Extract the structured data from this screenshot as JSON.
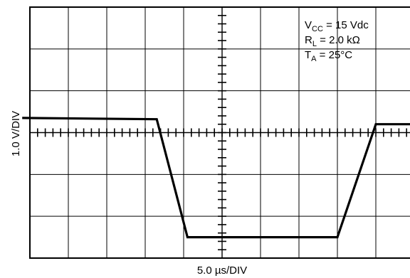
{
  "chart_data": {
    "type": "line",
    "title": "",
    "xlabel": "5.0 µs/DIV",
    "ylabel": "1.0 V/DIV",
    "grid": true,
    "divisions": {
      "x": 10,
      "y": 6
    },
    "x_unit_per_div": "5.0 µs",
    "y_unit_per_div": "1.0 V",
    "conditions": [
      {
        "main": "V",
        "sub": "CC",
        "rest": " = 15 Vdc"
      },
      {
        "main": "R",
        "sub": "L",
        "rest": " = 2.0 kΩ"
      },
      {
        "main": "T",
        "sub": "A",
        "rest": " = 25°C"
      }
    ],
    "series": [
      {
        "x": [
          -5.2,
          -1.7,
          -0.9,
          3.0,
          4.0,
          5.2
        ],
        "y": [
          0.35,
          0.32,
          -2.5,
          -2.5,
          0.2,
          0.2
        ]
      }
    ]
  }
}
